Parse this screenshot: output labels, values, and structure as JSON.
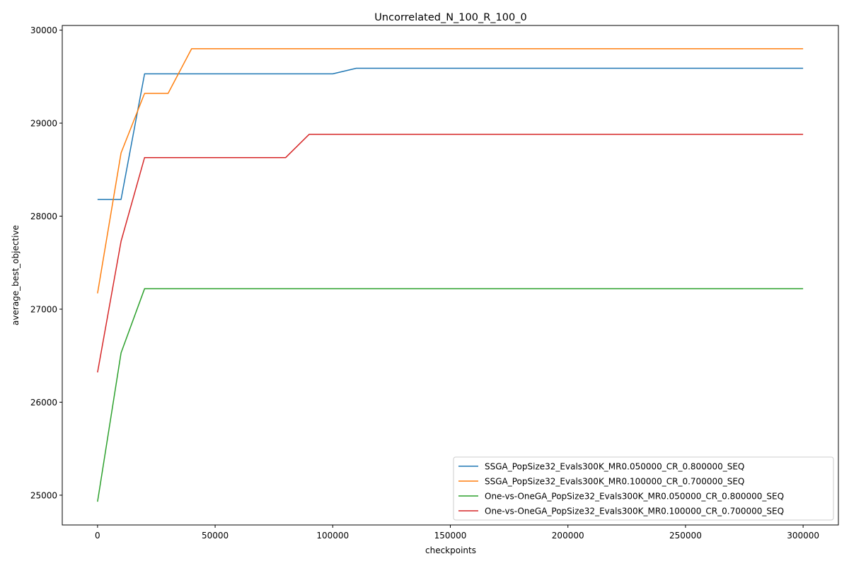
{
  "chart_data": {
    "type": "line",
    "title": "Uncorrelated_N_100_R_100_0",
    "xlabel": "checkpoints",
    "ylabel": "average_best_objective",
    "xlim": [
      -15000,
      315000
    ],
    "ylim": [
      24680,
      30050
    ],
    "xticks": [
      0,
      50000,
      100000,
      150000,
      200000,
      250000,
      300000
    ],
    "yticks": [
      25000,
      26000,
      27000,
      28000,
      29000,
      30000
    ],
    "grid": false,
    "legend_position": "lower right",
    "x": [
      0,
      10000,
      20000,
      30000,
      40000,
      50000,
      60000,
      70000,
      80000,
      90000,
      100000,
      110000,
      120000,
      130000,
      140000,
      150000,
      160000,
      170000,
      180000,
      190000,
      200000,
      210000,
      220000,
      230000,
      240000,
      250000,
      260000,
      270000,
      280000,
      290000,
      300000
    ],
    "series": [
      {
        "name": "SSGA_PopSize32_Evals300K_MR0.050000_CR_0.800000_SEQ",
        "color": "#1f77b4",
        "values": [
          28180,
          28180,
          29530,
          29530,
          29530,
          29530,
          29530,
          29530,
          29530,
          29530,
          29530,
          29590,
          29590,
          29590,
          29590,
          29590,
          29590,
          29590,
          29590,
          29590,
          29590,
          29590,
          29590,
          29590,
          29590,
          29590,
          29590,
          29590,
          29590,
          29590,
          29590
        ]
      },
      {
        "name": "SSGA_PopSize32_Evals300K_MR0.100000_CR_0.700000_SEQ",
        "color": "#ff7f0e",
        "values": [
          27170,
          28680,
          29320,
          29320,
          29800,
          29800,
          29800,
          29800,
          29800,
          29800,
          29800,
          29800,
          29800,
          29800,
          29800,
          29800,
          29800,
          29800,
          29800,
          29800,
          29800,
          29800,
          29800,
          29800,
          29800,
          29800,
          29800,
          29800,
          29800,
          29800,
          29800
        ]
      },
      {
        "name": "One-vs-OneGA_PopSize32_Evals300K_MR0.050000_CR_0.800000_SEQ",
        "color": "#2ca02c",
        "values": [
          24930,
          26530,
          27220,
          27220,
          27220,
          27220,
          27220,
          27220,
          27220,
          27220,
          27220,
          27220,
          27220,
          27220,
          27220,
          27220,
          27220,
          27220,
          27220,
          27220,
          27220,
          27220,
          27220,
          27220,
          27220,
          27220,
          27220,
          27220,
          27220,
          27220,
          27220
        ]
      },
      {
        "name": "One-vs-OneGA_PopSize32_Evals300K_MR0.100000_CR_0.700000_SEQ",
        "color": "#d62728",
        "values": [
          26320,
          27730,
          28630,
          28630,
          28630,
          28630,
          28630,
          28630,
          28630,
          28880,
          28880,
          28880,
          28880,
          28880,
          28880,
          28880,
          28880,
          28880,
          28880,
          28880,
          28880,
          28880,
          28880,
          28880,
          28880,
          28880,
          28880,
          28880,
          28880,
          28880,
          28880
        ]
      }
    ]
  }
}
